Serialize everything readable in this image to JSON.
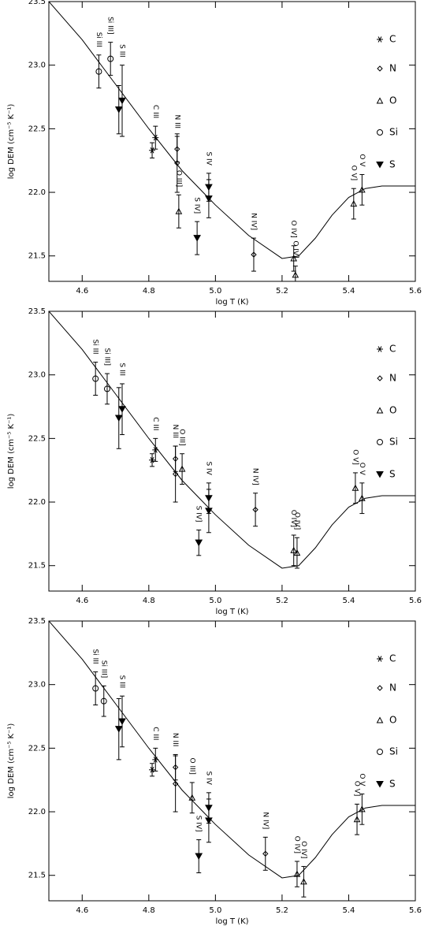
{
  "chart_data": [
    {
      "type": "scatter",
      "xlabel": "log T (K)",
      "ylabel": "log DEM (cm⁻⁵ K⁻¹)",
      "xlim": [
        4.5,
        5.6
      ],
      "ylim": [
        21.3,
        23.5
      ],
      "xticks": [
        4.6,
        4.8,
        {
          "value": 5,
          "label": "5.0"
        },
        5.2,
        5.4,
        5.6
      ],
      "yticks": [
        {
          "value": 21.5,
          "label": "21.5"
        },
        {
          "value": 22,
          "label": "22.0"
        },
        22.5,
        {
          "value": 23,
          "label": "23.0"
        },
        23.5
      ],
      "curve": {
        "x": [
          4.5,
          4.6,
          4.7,
          4.8,
          4.9,
          5.0,
          5.1,
          5.2,
          5.25,
          5.3,
          5.35,
          5.4,
          5.45,
          5.5,
          5.55,
          5.6
        ],
        "values": [
          23.5,
          23.2,
          22.85,
          22.5,
          22.17,
          21.9,
          21.66,
          21.48,
          21.5,
          21.64,
          21.82,
          21.96,
          22.03,
          22.05,
          22.05,
          22.05
        ]
      },
      "series": [
        {
          "name": "C",
          "marker": "asterisk",
          "x": [
            4.81,
            4.82
          ],
          "values": [
            22.33,
            22.43
          ],
          "errors": [
            0.06,
            0.09
          ],
          "labels": [
            null,
            "C III"
          ]
        },
        {
          "name": "N",
          "marker": "diamond",
          "x": [
            4.885,
            4.885,
            5.115
          ],
          "values": [
            22.34,
            22.23,
            21.51
          ],
          "errors": [
            0.1,
            0.23,
            0.13
          ],
          "labels": [
            "N III",
            null,
            "N IV]"
          ]
        },
        {
          "name": "O",
          "marker": "triangle",
          "x": [
            4.89,
            5.235,
            5.24,
            5.415,
            5.44
          ],
          "values": [
            21.85,
            21.48,
            21.35,
            21.91,
            22.02
          ],
          "errors": [
            0.13,
            0.1,
            0.07,
            0.12,
            0.12
          ],
          "labels": [
            "O III]",
            "O IV]",
            "O IV]",
            "O V]",
            "O V"
          ]
        },
        {
          "name": "Si",
          "marker": "circle",
          "x": [
            4.65,
            4.685
          ],
          "values": [
            22.95,
            23.05
          ],
          "errors": [
            0.13,
            0.13
          ],
          "labels": [
            "Si III",
            "Si III]"
          ]
        },
        {
          "name": "S",
          "marker": "triangle-down",
          "x": [
            4.71,
            4.72,
            4.945,
            4.98,
            4.98
          ],
          "values": [
            22.65,
            22.72,
            21.64,
            21.95,
            22.04
          ],
          "errors": [
            0.19,
            0.28,
            0.13,
            0.15,
            0.11
          ],
          "labels": [
            null,
            "S III",
            "S IV]",
            null,
            "S IV"
          ]
        }
      ]
    },
    {
      "type": "scatter",
      "xlabel": "log T (K)",
      "ylabel": "log DEM (cm⁻⁵ K⁻¹)",
      "xlim": [
        4.5,
        5.6
      ],
      "ylim": [
        21.3,
        23.5
      ],
      "xticks": [
        4.6,
        4.8,
        {
          "value": 5,
          "label": "5.0"
        },
        5.2,
        5.4,
        5.6
      ],
      "yticks": [
        {
          "value": 21.5,
          "label": "21.5"
        },
        {
          "value": 22,
          "label": "22.0"
        },
        22.5,
        {
          "value": 23,
          "label": "23.0"
        },
        23.5
      ],
      "curve": {
        "x": [
          4.5,
          4.6,
          4.7,
          4.8,
          4.9,
          5.0,
          5.1,
          5.2,
          5.25,
          5.3,
          5.35,
          5.4,
          5.45,
          5.5,
          5.55,
          5.6
        ],
        "values": [
          23.5,
          23.2,
          22.85,
          22.5,
          22.17,
          21.9,
          21.66,
          21.48,
          21.5,
          21.64,
          21.82,
          21.96,
          22.03,
          22.05,
          22.05,
          22.05
        ]
      },
      "series": [
        {
          "name": "C",
          "marker": "asterisk",
          "x": [
            4.81,
            4.82
          ],
          "values": [
            22.33,
            22.41
          ],
          "errors": [
            0.05,
            0.09
          ],
          "labels": [
            null,
            "C III"
          ]
        },
        {
          "name": "N",
          "marker": "diamond",
          "x": [
            4.88,
            4.88,
            5.12
          ],
          "values": [
            22.34,
            22.22,
            21.94
          ],
          "errors": [
            0.1,
            0.22,
            0.13
          ],
          "labels": [
            "N III",
            null,
            "N IV]"
          ]
        },
        {
          "name": "O",
          "marker": "triangle",
          "x": [
            4.9,
            5.235,
            5.245,
            5.42,
            5.44
          ],
          "values": [
            22.26,
            21.62,
            21.6,
            22.11,
            22.03
          ],
          "errors": [
            0.12,
            0.12,
            0.12,
            0.12,
            0.12
          ],
          "labels": [
            "O III]",
            "O IV]",
            "O IV]",
            "O V]",
            "O V"
          ]
        },
        {
          "name": "Si",
          "marker": "circle",
          "x": [
            4.64,
            4.675
          ],
          "values": [
            22.97,
            22.89
          ],
          "errors": [
            0.13,
            0.12
          ],
          "labels": [
            "Si III",
            "Si III]"
          ]
        },
        {
          "name": "S",
          "marker": "triangle-down",
          "x": [
            4.71,
            4.72,
            4.95,
            4.98,
            4.98
          ],
          "values": [
            22.66,
            22.73,
            21.68,
            21.93,
            22.03
          ],
          "errors": [
            0.24,
            0.2,
            0.1,
            0.17,
            0.12
          ],
          "labels": [
            null,
            "S III",
            "S IV]",
            null,
            "S IV"
          ]
        }
      ]
    },
    {
      "type": "scatter",
      "xlabel": "log T (K)",
      "ylabel": "log DEM (cm⁻⁵ K⁻¹)",
      "xlim": [
        4.5,
        5.6
      ],
      "ylim": [
        21.3,
        23.5
      ],
      "xticks": [
        4.6,
        4.8,
        {
          "value": 5,
          "label": "5.0"
        },
        5.2,
        5.4,
        5.6
      ],
      "yticks": [
        {
          "value": 21.5,
          "label": "21.5"
        },
        {
          "value": 22,
          "label": "22.0"
        },
        22.5,
        {
          "value": 23,
          "label": "23.0"
        },
        23.5
      ],
      "curve": {
        "x": [
          4.5,
          4.6,
          4.7,
          4.8,
          4.9,
          5.0,
          5.1,
          5.2,
          5.25,
          5.3,
          5.35,
          5.4,
          5.45,
          5.5,
          5.55,
          5.6
        ],
        "values": [
          23.5,
          23.2,
          22.85,
          22.5,
          22.17,
          21.9,
          21.66,
          21.48,
          21.5,
          21.64,
          21.82,
          21.96,
          22.03,
          22.05,
          22.05,
          22.05
        ]
      },
      "series": [
        {
          "name": "C",
          "marker": "asterisk",
          "x": [
            4.81,
            4.82
          ],
          "values": [
            22.33,
            22.41
          ],
          "errors": [
            0.05,
            0.09
          ],
          "labels": [
            null,
            "C III"
          ]
        },
        {
          "name": "N",
          "marker": "diamond",
          "x": [
            4.88,
            4.88,
            5.15
          ],
          "values": [
            22.35,
            22.22,
            21.67
          ],
          "errors": [
            0.1,
            0.22,
            0.13
          ],
          "labels": [
            "N III",
            null,
            "N IV]"
          ]
        },
        {
          "name": "O",
          "marker": "triangle",
          "x": [
            4.93,
            5.245,
            5.265,
            5.425,
            5.44
          ],
          "values": [
            22.11,
            21.51,
            21.45,
            21.94,
            22.02
          ],
          "errors": [
            0.12,
            0.1,
            0.12,
            0.12,
            0.12
          ],
          "labels": [
            "O III]",
            "O IV]",
            "O IV]",
            "O V]",
            "O V"
          ]
        },
        {
          "name": "Si",
          "marker": "circle",
          "x": [
            4.64,
            4.665
          ],
          "values": [
            22.97,
            22.87
          ],
          "errors": [
            0.13,
            0.12
          ],
          "labels": [
            "Si III",
            "Si III]"
          ]
        },
        {
          "name": "S",
          "marker": "triangle-down",
          "x": [
            4.71,
            4.72,
            4.95,
            4.98,
            4.98
          ],
          "values": [
            22.65,
            22.71,
            21.65,
            21.93,
            22.03
          ],
          "errors": [
            0.24,
            0.2,
            0.13,
            0.17,
            0.12
          ],
          "labels": [
            null,
            "S III",
            "S IV]",
            null,
            "S IV"
          ]
        }
      ]
    }
  ]
}
